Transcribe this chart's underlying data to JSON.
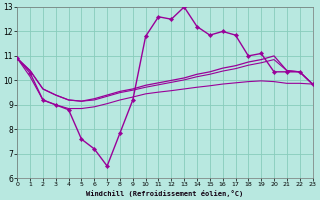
{
  "xlabel": "Windchill (Refroidissement éolien,°C)",
  "xlim": [
    0,
    23
  ],
  "ylim": [
    6,
    13
  ],
  "xticks": [
    0,
    1,
    2,
    3,
    4,
    5,
    6,
    7,
    8,
    9,
    10,
    11,
    12,
    13,
    14,
    15,
    16,
    17,
    18,
    19,
    20,
    21,
    22,
    23
  ],
  "yticks": [
    6,
    7,
    8,
    9,
    10,
    11,
    12,
    13
  ],
  "bg_color": "#b8e8e0",
  "grid_color": "#88ccbc",
  "line_color": "#990099",
  "main_x": [
    0,
    1,
    2,
    3,
    4,
    5,
    6,
    7,
    8,
    9,
    10,
    11,
    12,
    13,
    14,
    15,
    16,
    17,
    18,
    19,
    20,
    21,
    22,
    23
  ],
  "main_y": [
    10.9,
    10.3,
    9.2,
    9.0,
    8.8,
    7.6,
    7.2,
    6.5,
    7.85,
    9.2,
    11.8,
    12.6,
    12.5,
    13.0,
    12.2,
    11.85,
    12.0,
    11.85,
    11.0,
    11.1,
    10.35,
    10.35,
    10.35,
    9.85
  ],
  "line2_x": [
    0,
    1,
    2,
    3,
    4,
    5,
    6,
    7,
    8,
    9,
    10,
    11,
    12,
    13,
    14,
    15,
    16,
    17,
    18,
    19,
    20,
    21,
    22,
    23
  ],
  "line2_y": [
    10.9,
    10.4,
    9.65,
    9.4,
    9.2,
    9.15,
    9.25,
    9.4,
    9.55,
    9.65,
    9.8,
    9.9,
    10.0,
    10.1,
    10.25,
    10.35,
    10.5,
    10.6,
    10.75,
    10.85,
    11.0,
    10.4,
    10.35,
    9.85
  ],
  "line3_x": [
    0,
    1,
    2,
    3,
    4,
    5,
    6,
    7,
    8,
    9,
    10,
    11,
    12,
    13,
    14,
    15,
    16,
    17,
    18,
    19,
    20,
    21,
    22,
    23
  ],
  "line3_y": [
    10.9,
    10.4,
    9.65,
    9.4,
    9.2,
    9.15,
    9.2,
    9.35,
    9.5,
    9.6,
    9.72,
    9.82,
    9.92,
    10.02,
    10.15,
    10.25,
    10.38,
    10.48,
    10.62,
    10.72,
    10.85,
    10.4,
    10.35,
    9.85
  ],
  "line4_x": [
    0,
    1,
    2,
    3,
    4,
    5,
    6,
    7,
    8,
    9,
    10,
    11,
    12,
    13,
    14,
    15,
    16,
    17,
    18,
    19,
    20,
    21,
    22,
    23
  ],
  "line4_y": [
    10.9,
    10.15,
    9.2,
    9.0,
    8.85,
    8.85,
    8.92,
    9.05,
    9.2,
    9.32,
    9.45,
    9.52,
    9.58,
    9.65,
    9.72,
    9.78,
    9.85,
    9.9,
    9.95,
    9.98,
    9.95,
    9.88,
    9.88,
    9.85
  ]
}
